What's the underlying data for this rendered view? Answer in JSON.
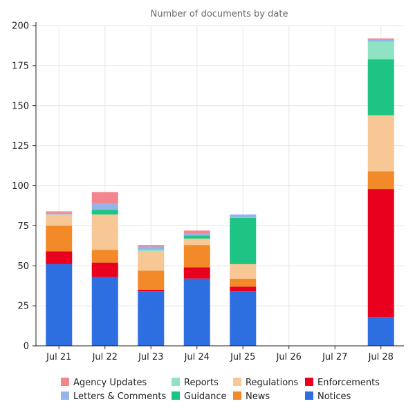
{
  "chart_data": {
    "type": "bar",
    "stacked": true,
    "title": "Number of documents by date",
    "xlabel": "",
    "ylabel": "",
    "ylim": [
      0,
      200
    ],
    "yticks": [
      0,
      25,
      50,
      75,
      100,
      125,
      150,
      175,
      200
    ],
    "grid": true,
    "legend_position": "bottom",
    "categories": [
      "Jul 21",
      "Jul 22",
      "Jul 23",
      "Jul 24",
      "Jul 25",
      "Jul 26",
      "Jul 27",
      "Jul 28"
    ],
    "series": [
      {
        "name": "Notices",
        "color": "#2d6ee0",
        "values": [
          51,
          43,
          34,
          42,
          34,
          0,
          0,
          18
        ]
      },
      {
        "name": "Enforcements",
        "color": "#e8001e",
        "values": [
          8,
          9,
          1,
          7,
          3,
          0,
          0,
          80
        ]
      },
      {
        "name": "News",
        "color": "#f28a2a",
        "values": [
          16,
          8,
          12,
          14,
          5,
          0,
          0,
          11
        ]
      },
      {
        "name": "Regulations",
        "color": "#f8c796",
        "values": [
          7,
          22,
          12,
          4,
          9,
          0,
          0,
          35
        ]
      },
      {
        "name": "Guidance",
        "color": "#1ec484",
        "values": [
          0,
          3,
          0,
          2,
          29,
          0,
          0,
          35
        ]
      },
      {
        "name": "Reports",
        "color": "#8de3c3",
        "values": [
          0,
          0,
          1,
          0,
          0,
          0,
          0,
          11
        ]
      },
      {
        "name": "Letters & Comments",
        "color": "#93b5ea",
        "values": [
          1,
          4,
          2,
          1,
          2,
          0,
          0,
          1
        ]
      },
      {
        "name": "Agency Updates",
        "color": "#f3858f",
        "values": [
          1,
          7,
          1,
          2,
          0,
          0,
          0,
          1
        ]
      }
    ],
    "legend_order": [
      "Agency Updates",
      "Reports",
      "Regulations",
      "Enforcements",
      "Letters & Comments",
      "Guidance",
      "News",
      "Notices"
    ]
  }
}
